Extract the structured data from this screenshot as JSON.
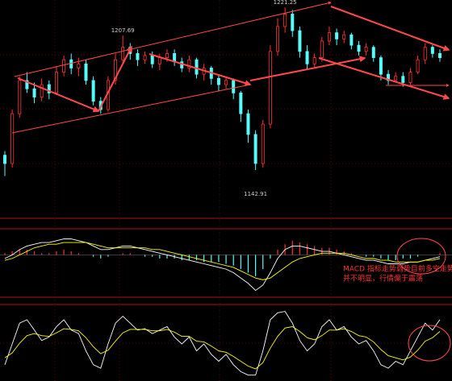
{
  "chart_data": [
    {
      "type": "candlestick",
      "up_color": "#ff3232",
      "down_color": "#54fcfc",
      "ylim": [
        1120,
        1224
      ],
      "open": [
        1150,
        1146,
        1170,
        1186,
        1182,
        1178,
        1184,
        1180,
        1190,
        1196,
        1192,
        1194,
        1186,
        1176,
        1172,
        1186,
        1196,
        1202,
        1199,
        1196,
        1198,
        1194,
        1197,
        1199,
        1195,
        1192,
        1196,
        1189,
        1192,
        1187,
        1184,
        1186,
        1180,
        1170,
        1160,
        1146,
        1165,
        1200,
        1212,
        1218,
        1210,
        1200,
        1194,
        1197,
        1205,
        1209,
        1206,
        1208,
        1203,
        1200,
        1202,
        1197,
        1189,
        1186,
        1188,
        1185,
        1190,
        1196,
        1202,
        1199
      ],
      "close": [
        1146,
        1170,
        1186,
        1182,
        1178,
        1184,
        1180,
        1190,
        1196,
        1192,
        1194,
        1186,
        1176,
        1172,
        1186,
        1196,
        1202,
        1199,
        1196,
        1198,
        1194,
        1197,
        1199,
        1195,
        1192,
        1196,
        1189,
        1192,
        1187,
        1184,
        1186,
        1180,
        1170,
        1160,
        1146,
        1165,
        1200,
        1212,
        1218,
        1210,
        1200,
        1194,
        1197,
        1205,
        1209,
        1206,
        1208,
        1203,
        1200,
        1202,
        1197,
        1189,
        1186,
        1188,
        1185,
        1190,
        1196,
        1202,
        1199,
        1197
      ],
      "high": [
        1152,
        1172,
        1188,
        1190,
        1185,
        1187,
        1186,
        1193,
        1198,
        1199,
        1197,
        1196,
        1188,
        1178,
        1188,
        1199,
        1207.69,
        1204,
        1201,
        1200,
        1200,
        1199,
        1201,
        1201,
        1197,
        1198,
        1197,
        1194,
        1193,
        1189,
        1188,
        1187,
        1181,
        1172,
        1162,
        1167,
        1203,
        1216,
        1221.25,
        1220,
        1212,
        1203,
        1199,
        1207,
        1212,
        1211,
        1210,
        1209,
        1205,
        1204,
        1203,
        1198,
        1191,
        1190,
        1190,
        1192,
        1198,
        1204,
        1203,
        1201
      ],
      "low": [
        1140,
        1144,
        1168,
        1180,
        1175,
        1176,
        1177,
        1179,
        1188,
        1189,
        1188,
        1184,
        1174,
        1170,
        1171,
        1184,
        1194,
        1196,
        1193,
        1194,
        1192,
        1191,
        1195,
        1193,
        1190,
        1190,
        1187,
        1186,
        1184,
        1181,
        1182,
        1177,
        1166,
        1156,
        1142.91,
        1144,
        1163,
        1198,
        1209,
        1207,
        1197,
        1191,
        1192,
        1195,
        1203,
        1203,
        1204,
        1201,
        1198,
        1198,
        1195,
        1186,
        1184,
        1185,
        1183,
        1184,
        1189,
        1194,
        1197,
        1195
      ],
      "annotations": [
        "1207.69",
        "1221.25",
        "1142.91"
      ]
    },
    {
      "type": "macd",
      "up_color": "#ff3232",
      "down_color": "#54fcfc",
      "ylim": [
        -22,
        12
      ],
      "values": [
        1,
        2,
        3,
        3,
        2,
        1,
        1,
        2,
        3,
        2,
        1,
        0,
        -1,
        -2,
        -1,
        0,
        1,
        1,
        0,
        -1,
        -1,
        -2,
        -2,
        -2,
        -3,
        -3,
        -3,
        -4,
        -4,
        -4,
        -5,
        -6,
        -8,
        -10,
        -12,
        -8,
        -2,
        3,
        6,
        8,
        7,
        6,
        5,
        4,
        4,
        3,
        2,
        1,
        0,
        -1,
        -1,
        -2,
        -3,
        -3,
        -2,
        -2,
        -1,
        0,
        0,
        1
      ],
      "series": [
        {
          "color": "#ffffff",
          "values": [
            -2,
            0,
            3,
            5,
            6,
            7,
            7,
            8,
            9,
            9,
            8,
            7,
            5,
            3,
            3,
            4,
            5,
            5,
            4,
            3,
            2,
            1,
            0,
            -1,
            -2,
            -3,
            -4,
            -5,
            -6,
            -7,
            -8,
            -10,
            -13,
            -16,
            -20,
            -17,
            -10,
            -2,
            3,
            5,
            5,
            4,
            3,
            2,
            2,
            1,
            0,
            -1,
            -2,
            -3,
            -3,
            -4,
            -5,
            -5,
            -5,
            -4,
            -4,
            -3,
            -2,
            -1
          ]
        },
        {
          "color": "#ffff00",
          "values": [
            -3,
            -2,
            0,
            2,
            4,
            5,
            6,
            6,
            7,
            7,
            7,
            7,
            6,
            5,
            4,
            4,
            4,
            4,
            4,
            4,
            3,
            3,
            2,
            1,
            0,
            -1,
            -2,
            -3,
            -4,
            -5,
            -6,
            -7,
            -9,
            -11,
            -13,
            -14,
            -13,
            -10,
            -7,
            -4,
            -2,
            -1,
            0,
            1,
            1,
            1,
            1,
            0,
            -1,
            -2,
            -2,
            -3,
            -3,
            -4,
            -4,
            -4,
            -4,
            -3,
            -3,
            -2
          ]
        }
      ],
      "annotations": [
        "MACD 指标走势弱势目前多空走势",
        "并不明显，行情偏于震荡"
      ]
    },
    {
      "type": "line",
      "ylim": [
        0,
        100
      ],
      "series": [
        {
          "color": "#ffffff",
          "values": [
            20,
            50,
            80,
            85,
            70,
            55,
            60,
            75,
            85,
            70,
            65,
            40,
            20,
            15,
            50,
            80,
            90,
            80,
            70,
            72,
            65,
            70,
            75,
            60,
            50,
            60,
            40,
            50,
            35,
            25,
            35,
            20,
            10,
            5,
            5,
            40,
            85,
            95,
            97,
            80,
            55,
            40,
            50,
            75,
            85,
            70,
            75,
            60,
            50,
            55,
            40,
            20,
            15,
            25,
            20,
            40,
            60,
            80,
            70,
            85
          ]
        },
        {
          "color": "#ffff00",
          "values": [
            30,
            37,
            51,
            62,
            65,
            62,
            61,
            66,
            72,
            71,
            69,
            59,
            46,
            36,
            41,
            54,
            66,
            71,
            71,
            71,
            69,
            69,
            71,
            67,
            61,
            61,
            54,
            53,
            47,
            40,
            38,
            32,
            25,
            18,
            14,
            23,
            44,
            61,
            73,
            75,
            68,
            59,
            56,
            62,
            70,
            70,
            72,
            68,
            62,
            60,
            53,
            42,
            33,
            30,
            27,
            31,
            41,
            54,
            59,
            68
          ]
        }
      ]
    }
  ]
}
